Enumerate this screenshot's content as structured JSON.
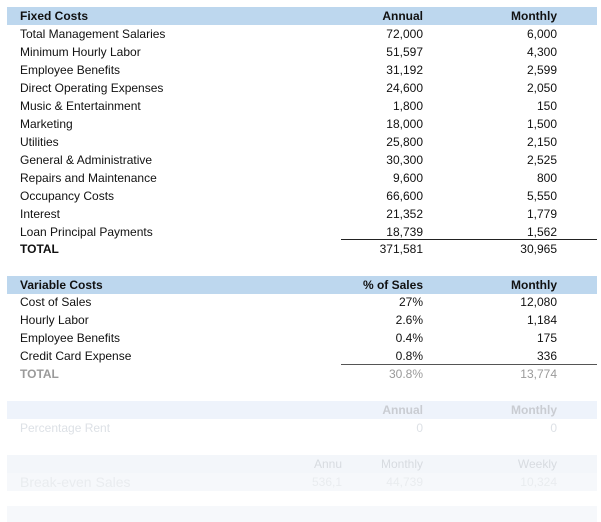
{
  "fixed": {
    "header": {
      "label": "Fixed Costs",
      "col1": "Annual",
      "col2": "Monthly"
    },
    "rows": [
      {
        "label": "Total Management Salaries",
        "annual": "72,000",
        "monthly": "6,000"
      },
      {
        "label": "Minimum Hourly Labor",
        "annual": "51,597",
        "monthly": "4,300"
      },
      {
        "label": "Employee Benefits",
        "annual": "31,192",
        "monthly": "2,599"
      },
      {
        "label": "Direct Operating Expenses",
        "annual": "24,600",
        "monthly": "2,050"
      },
      {
        "label": "Music & Entertainment",
        "annual": "1,800",
        "monthly": "150"
      },
      {
        "label": "Marketing",
        "annual": "18,000",
        "monthly": "1,500"
      },
      {
        "label": "Utilities",
        "annual": "25,800",
        "monthly": "2,150"
      },
      {
        "label": "General & Administrative",
        "annual": "30,300",
        "monthly": "2,525"
      },
      {
        "label": "Repairs and Maintenance",
        "annual": "9,600",
        "monthly": "800"
      },
      {
        "label": "Occupancy Costs",
        "annual": "66,600",
        "monthly": "5,550"
      },
      {
        "label": "Interest",
        "annual": "21,352",
        "monthly": "1,779"
      },
      {
        "label": "Loan Principal Payments",
        "annual": "18,739",
        "monthly": "1,562"
      }
    ],
    "total": {
      "label": "TOTAL",
      "annual": "371,581",
      "monthly": "30,965"
    }
  },
  "variable": {
    "header": {
      "label": "Variable Costs",
      "col1": "% of Sales",
      "col2": "Monthly"
    },
    "rows": [
      {
        "label": "Cost of Sales",
        "pct": "27%",
        "monthly": "12,080"
      },
      {
        "label": "Hourly Labor",
        "pct": "2.6%",
        "monthly": "1,184"
      },
      {
        "label": "Employee Benefits",
        "pct": "0.4%",
        "monthly": "175"
      },
      {
        "label": "Credit Card Expense",
        "pct": "0.8%",
        "monthly": "336"
      }
    ],
    "total": {
      "label": "TOTAL",
      "pct": "30.8%",
      "monthly": "13,774"
    }
  },
  "rent": {
    "header": {
      "col1": "Annual",
      "col2": "Monthly"
    },
    "row": {
      "label": "Percentage Rent",
      "annual": "0",
      "monthly": "0"
    }
  },
  "breakeven": {
    "header": {
      "col0": "Annu",
      "col1": "Monthly",
      "col2": "Weekly"
    },
    "row": {
      "label": "Break-even Sales",
      "annual": "536,1",
      "monthly": "44,739",
      "weekly": "10,324"
    }
  }
}
